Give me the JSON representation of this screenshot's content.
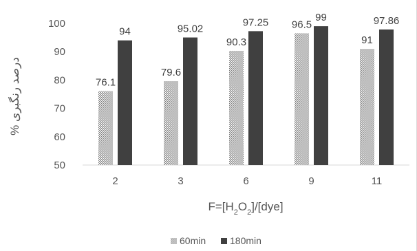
{
  "chart_data": {
    "type": "bar",
    "categories": [
      "2",
      "3",
      "6",
      "9",
      "11"
    ],
    "series": [
      {
        "name": "60min",
        "values": [
          76.1,
          79.6,
          90.3,
          96.5,
          91
        ],
        "labels": [
          "76.1",
          "79.6",
          "90.3",
          "96.5",
          "91"
        ],
        "color": "#bfbfbf",
        "pattern": "dotted"
      },
      {
        "name": "180min",
        "values": [
          94,
          95.02,
          97.25,
          99,
          97.86
        ],
        "labels": [
          "94",
          "95.02",
          "97.25",
          "99",
          "97.86"
        ],
        "color": "#404040",
        "pattern": "solid"
      }
    ],
    "xlabel_parts": {
      "pre": "F=[H",
      "sub1": "2",
      "mid": "O",
      "sub2": "2",
      "post": "]/[dye]"
    },
    "ylabel": "% درصد رنگبری",
    "ylim": [
      50,
      100
    ],
    "yticks": [
      "50",
      "60",
      "70",
      "80",
      "90",
      "100"
    ],
    "grid": false,
    "legend_position": "bottom"
  }
}
